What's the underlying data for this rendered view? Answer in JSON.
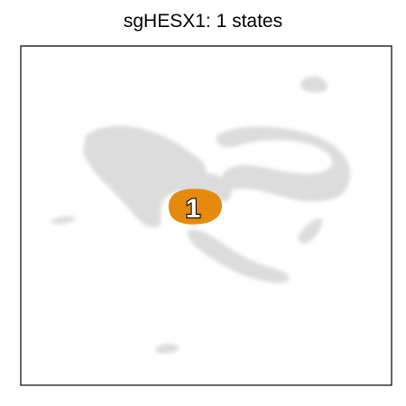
{
  "chart_data": {
    "type": "scatter",
    "title": "sgHESX1: 1 states",
    "xlabel": "",
    "ylabel": "",
    "grid": false,
    "axes_ticks": false,
    "background_color": "#d9d9d9",
    "highlight_color": "#e58a0c",
    "states": [
      {
        "label": "1"
      }
    ]
  }
}
